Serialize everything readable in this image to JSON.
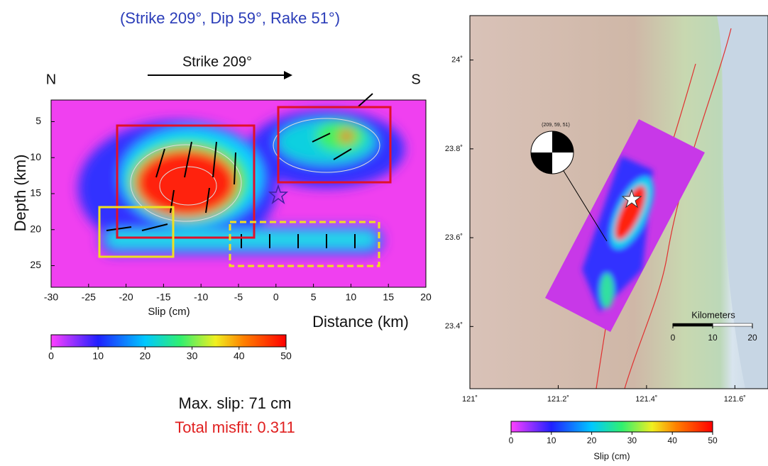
{
  "title": "(Strike 209°, Dip 59°, Rake 51°)",
  "left_panel": {
    "strike_label": "Strike 209°",
    "north": "N",
    "south": "S",
    "y_label": "Depth (km)",
    "x_label": "Distance (km)",
    "xlim": [
      -30,
      20
    ],
    "xticks": [
      -30,
      -25,
      -20,
      -15,
      -10,
      -5,
      0,
      5,
      10,
      15,
      20
    ],
    "ylim": [
      2,
      28
    ],
    "yticks": [
      5,
      10,
      15,
      20,
      25
    ],
    "colorbar": {
      "label": "Slip (cm)",
      "lim": [
        0,
        50
      ],
      "ticks": [
        0,
        10,
        20,
        30,
        40,
        50
      ]
    },
    "max_slip": "Max. slip: 71 cm",
    "misfit": "Total misfit: 0.311"
  },
  "right_panel": {
    "mechanism_label": "(209, 59, 51)",
    "lonlim": [
      121,
      121.675
    ],
    "latlim": [
      23.26,
      24.1
    ],
    "lat_ticks": [
      {
        "value": 24,
        "label": "24˚"
      },
      {
        "value": 23.8,
        "label": "23.8˚"
      },
      {
        "value": 23.6,
        "label": "23.6˚"
      },
      {
        "value": 23.4,
        "label": "23.4˚"
      }
    ],
    "lon_ticks": [
      {
        "value": 121,
        "label": "121˚"
      },
      {
        "value": 121.2,
        "label": "121.2˚"
      },
      {
        "value": 121.4,
        "label": "121.4˚"
      },
      {
        "value": 121.6,
        "label": "121.6˚"
      }
    ],
    "scale_bar": {
      "label": "Kilometers",
      "ticks": [
        0,
        10,
        20
      ]
    },
    "colorbar": {
      "label": "Slip (cm)",
      "lim": [
        0,
        50
      ],
      "ticks": [
        0,
        10,
        20,
        30,
        40,
        50
      ]
    }
  }
}
